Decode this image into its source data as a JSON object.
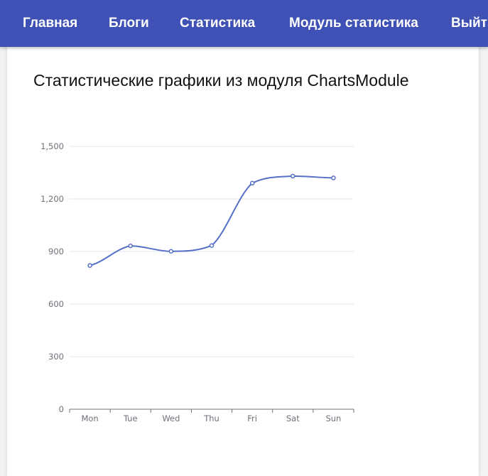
{
  "navbar": {
    "items": [
      {
        "label": "Главная"
      },
      {
        "label": "Блоги"
      },
      {
        "label": "Статистика"
      },
      {
        "label": "Модуль статистика"
      },
      {
        "label": "Выйти"
      }
    ]
  },
  "page": {
    "title": "Статистические графики из модуля ChartsModule"
  },
  "colors": {
    "navbar": "#3f51b5",
    "series": "#5470c6",
    "grid": "#e0e6f1",
    "axis": "#6e7079"
  },
  "chart_data": {
    "type": "line",
    "smooth": true,
    "categories": [
      "Mon",
      "Tue",
      "Wed",
      "Thu",
      "Fri",
      "Sat",
      "Sun"
    ],
    "series": [
      {
        "values": [
          820,
          932,
          901,
          934,
          1290,
          1330,
          1320
        ]
      }
    ],
    "yticks": [
      "0",
      "300",
      "600",
      "900",
      "1,200",
      "1,500"
    ],
    "ylim": [
      0,
      1500
    ],
    "grid": true,
    "legend": "none"
  }
}
